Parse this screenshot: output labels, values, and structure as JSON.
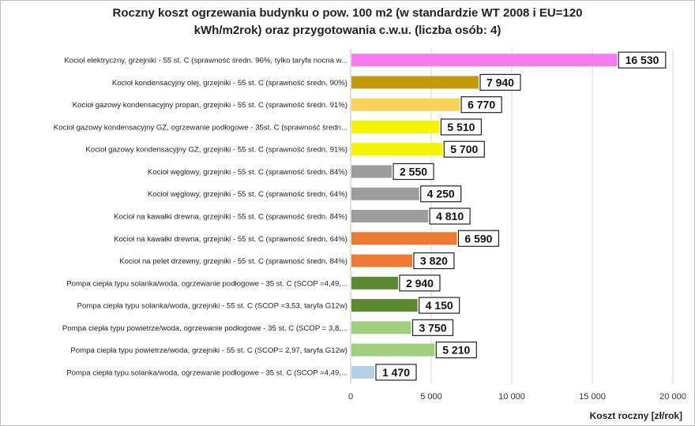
{
  "chart_data": {
    "type": "bar",
    "orientation": "horizontal",
    "title": "Roczny koszt  ogrzewania budynku  o pow. 100 m2 (w standardzie  WT 2008 i EU=120\nkWh/m2rok) oraz przygotowania  c.w.u. (liczba osób: 4)",
    "xlabel": "Koszt roczny [zł/rok]",
    "ylabel": "",
    "xlim": [
      0,
      20000
    ],
    "xticks": [
      0,
      5000,
      10000,
      15000,
      20000
    ],
    "xtick_labels": [
      "0",
      "5 000",
      "10 000",
      "15 000",
      "20 000"
    ],
    "grid": true,
    "categories": [
      "Kocioł  elektryczny,  grzejniki - 55 st. C  (sprawność średn. 96%, tylko taryfa nocna w...",
      "Kocioł  kondensacyjny olej,  grzejniki - 55 st. C  (sprawność średn. 90%)",
      "Kocioł gazowy kondensacyjny propan, grzejniki - 55 st. C  (sprawność średn. 91%)",
      "Kocioł gazowy kondensacyjny GZ, ogrzewanie podłogowe - 35st. C  (sprawność średn...",
      "Kocioł gazowy kondensacyjny GZ, grzejniki - 55 st. C  (sprawność średn. 91%)",
      "Kocioł węglowy,  grzejniki - 55 st. C  (sprawność średn. 84%)",
      "Kocioł węglowy,  grzejniki - 55 st. C  (sprawność średn. 64%)",
      "Kocioł na kawałki drewna, grzejniki - 55 st. C (sprawność średn. 84%)",
      "Kocioł na kawałki drewna, grzejniki - 55 st. C  (sprawność średn. 64%)",
      "Kocioł na pelet drzewny, grzejniki - 55 st. C  (sprawność średn. 84%)",
      "Pompa ciepła typu solanka/woda, ogrzewanie podłogowe - 35 st. C  (SCOP =4,49,...",
      "Pompa ciepła typu solanka/woda, grzejniki - 55 st. C (SCOP =3,53, taryfa G12w)",
      "Pompa ciepła typu powietrze/woda, ogrzewanie podłogowe - 35 st. C (SCOP = 3,8,...",
      "Pompa ciepła typu powietrze/woda, grzejniki - 55 st. C (SCOP= 2,97, taryfa G12w)",
      "Pompa ciepła typu solanka/woda, ogrzewanie podłogowe - 35 st. C  (SCOP =4,49,..."
    ],
    "values": [
      16530,
      7940,
      6770,
      5510,
      5700,
      2550,
      4250,
      4810,
      6590,
      3820,
      2940,
      4150,
      3750,
      5210,
      1470
    ],
    "value_labels": [
      "16 530",
      "7 940",
      "6 770",
      "5 510",
      "5 700",
      "2 550",
      "4 250",
      "4 810",
      "6 590",
      "3 820",
      "2 940",
      "4 150",
      "3 750",
      "5 210",
      "1 470"
    ],
    "colors": [
      "#f57df0",
      "#c49a0a",
      "#f8d35a",
      "#f5f500",
      "#f5f500",
      "#9d9d9d",
      "#9d9d9d",
      "#9d9d9d",
      "#ec7a32",
      "#ec7a32",
      "#5b8a2e",
      "#5b8a2e",
      "#9fcf7f",
      "#9fcf7f",
      "#b4cfe8"
    ]
  }
}
